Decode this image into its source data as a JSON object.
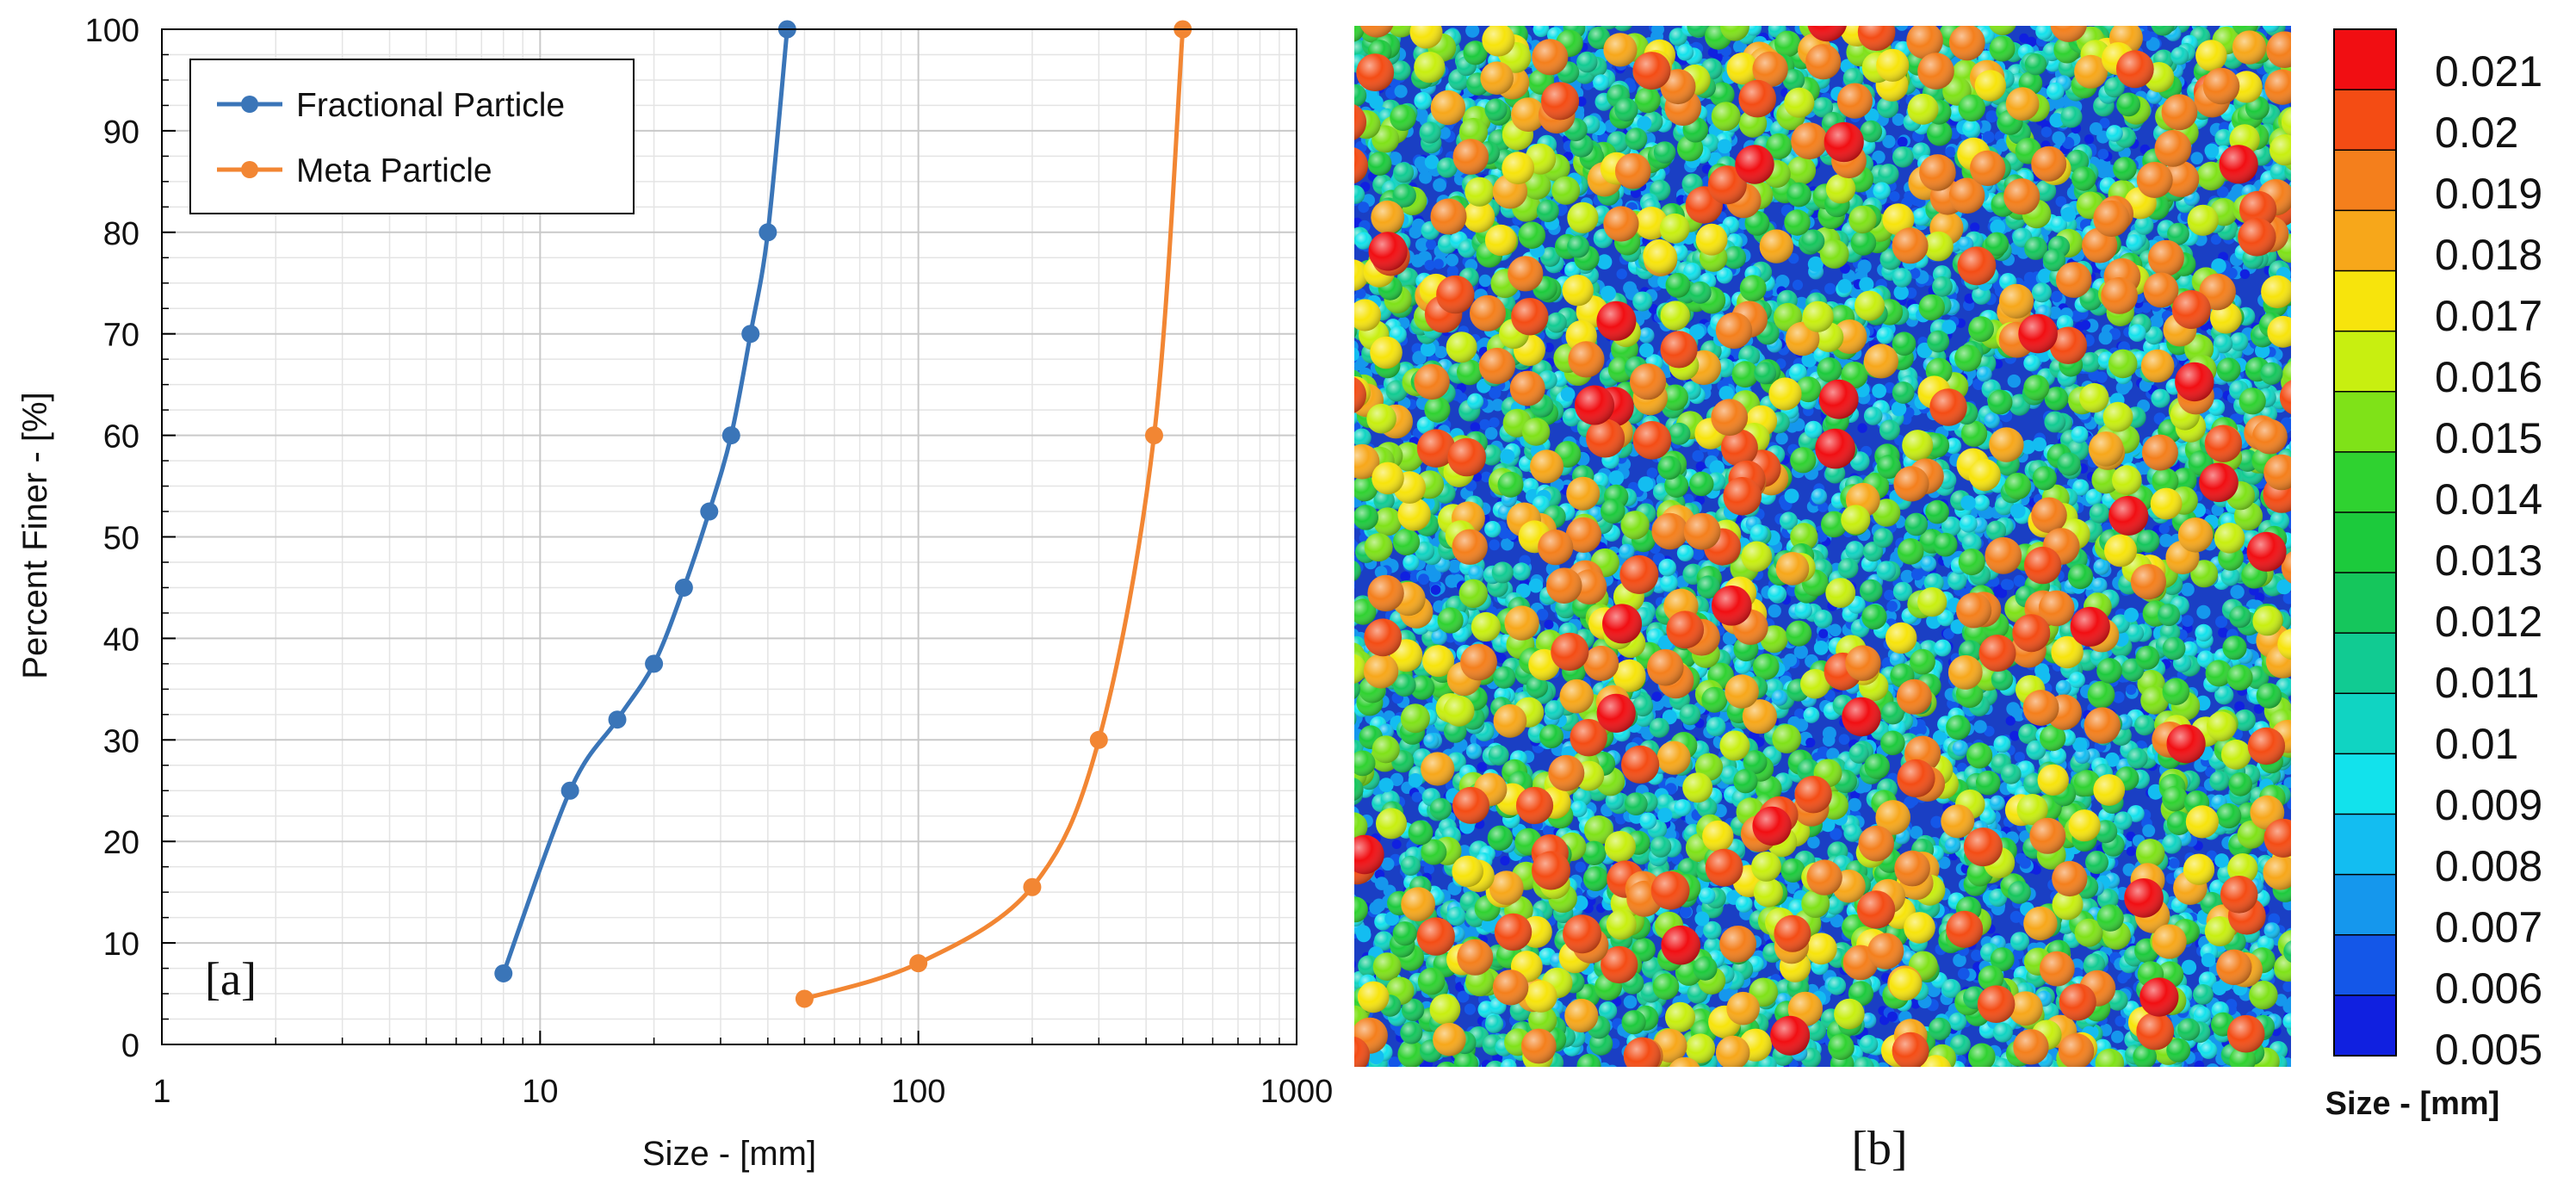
{
  "chart_data": [
    {
      "panel_label": "[a]",
      "type": "line",
      "xscale": "log",
      "xlim": [
        1,
        1000
      ],
      "ylim": [
        0,
        100
      ],
      "xlabel": "Size - [mm]",
      "ylabel": "Percent Finer - [%]",
      "xticks": [
        1,
        10,
        100,
        1000
      ],
      "xtick_labels": [
        "1",
        "10",
        "100",
        "1000"
      ],
      "yticks": [
        0,
        10,
        20,
        30,
        40,
        50,
        60,
        70,
        80,
        90,
        100
      ],
      "ytick_labels": [
        "0",
        "10",
        "20",
        "30",
        "40",
        "50",
        "60",
        "70",
        "80",
        "90",
        "100"
      ],
      "grid": true,
      "legend": "top-left",
      "series": [
        {
          "name": "Fractional Particle",
          "color": "#3a75b8",
          "x": [
            8,
            12,
            16,
            20,
            24,
            28,
            32,
            36,
            40,
            45
          ],
          "y": [
            7,
            25,
            32,
            37.5,
            45,
            52.5,
            60,
            70,
            80,
            100
          ]
        },
        {
          "name": "Meta Particle",
          "color": "#f28633",
          "x": [
            50,
            100,
            200,
            300,
            420,
            500
          ],
          "y": [
            4.5,
            8,
            15.5,
            30,
            60,
            100
          ]
        }
      ]
    },
    {
      "panel_label": "[b]",
      "type": "heatmap",
      "title": "",
      "colorbar_label": "Size - [mm]",
      "colorbar_ticks": [
        "0.021",
        "0.02",
        "0.019",
        "0.018",
        "0.017",
        "0.016",
        "0.015",
        "0.014",
        "0.013",
        "0.012",
        "0.011",
        "0.01",
        "0.009",
        "0.008",
        "0.007",
        "0.006",
        "0.005"
      ],
      "colorbar_colors": [
        "#f10e12",
        "#f44c14",
        "#f47f1c",
        "#f7a71a",
        "#f7e40c",
        "#c8ef10",
        "#7fe218",
        "#2fd230",
        "#1cca3c",
        "#15c65c",
        "#11cb92",
        "#10d4c2",
        "#12e2ec",
        "#13bdf1",
        "#1597ed",
        "#1457e8",
        "#1020e0"
      ],
      "size_range": [
        0.005,
        0.021
      ]
    }
  ]
}
